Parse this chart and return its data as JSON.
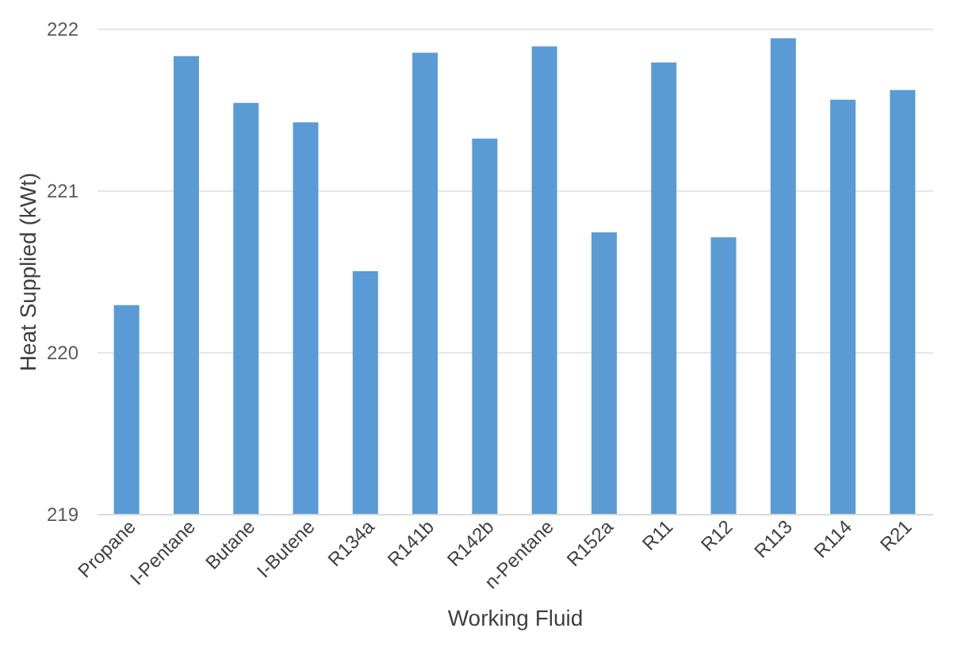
{
  "chart_data": {
    "type": "bar",
    "xlabel": "Working Fluid",
    "ylabel": "Heat Supplied (kWt)",
    "categories": [
      "Propane",
      "I-Pentane",
      "Butane",
      "I-Butene",
      "R134a",
      "R141b",
      "R142b",
      "n-Pentane",
      "R152a",
      "R11",
      "R12",
      "R113",
      "R114",
      "R21"
    ],
    "series": [
      {
        "color": "#5b9bd5",
        "values": [
          220.29,
          221.83,
          221.54,
          221.42,
          220.5,
          221.85,
          221.32,
          221.89,
          220.74,
          221.79,
          220.71,
          221.94,
          221.56,
          221.62
        ]
      }
    ],
    "ylim": [
      219,
      222
    ],
    "yticks": [
      219,
      220,
      221,
      222
    ],
    "grid": "y",
    "legend": false
  }
}
